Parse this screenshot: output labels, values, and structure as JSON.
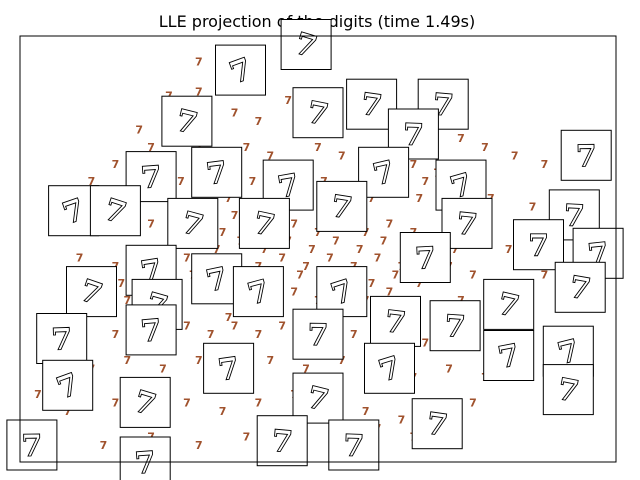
{
  "chart_data": {
    "type": "scatter",
    "title": "LLE projection of the digits (time 1.49s)",
    "xlabel": "",
    "ylabel": "",
    "xlim": [
      0,
      1
    ],
    "ylim": [
      0,
      1
    ],
    "grid": false,
    "ticks_visible": false,
    "marker_text": "7",
    "marker_color": "#a0522d",
    "thumbnail_glyph": "7",
    "points": [
      [
        0.3,
        0.94
      ],
      [
        0.34,
        0.92
      ],
      [
        0.35,
        0.89
      ],
      [
        0.3,
        0.87
      ],
      [
        0.25,
        0.86
      ],
      [
        0.28,
        0.84
      ],
      [
        0.31,
        0.83
      ],
      [
        0.36,
        0.82
      ],
      [
        0.4,
        0.8
      ],
      [
        0.45,
        0.85
      ],
      [
        0.48,
        0.82
      ],
      [
        0.53,
        0.86
      ],
      [
        0.57,
        0.84
      ],
      [
        0.61,
        0.85
      ],
      [
        0.62,
        0.81
      ],
      [
        0.66,
        0.8
      ],
      [
        0.7,
        0.78
      ],
      [
        0.74,
        0.76
      ],
      [
        0.78,
        0.74
      ],
      [
        0.83,
        0.72
      ],
      [
        0.2,
        0.78
      ],
      [
        0.22,
        0.74
      ],
      [
        0.26,
        0.76
      ],
      [
        0.3,
        0.74
      ],
      [
        0.34,
        0.72
      ],
      [
        0.38,
        0.74
      ],
      [
        0.42,
        0.72
      ],
      [
        0.46,
        0.7
      ],
      [
        0.5,
        0.74
      ],
      [
        0.54,
        0.72
      ],
      [
        0.58,
        0.7
      ],
      [
        0.62,
        0.72
      ],
      [
        0.66,
        0.7
      ],
      [
        0.7,
        0.68
      ],
      [
        0.74,
        0.66
      ],
      [
        0.16,
        0.7
      ],
      [
        0.12,
        0.66
      ],
      [
        0.15,
        0.62
      ],
      [
        0.19,
        0.64
      ],
      [
        0.23,
        0.62
      ],
      [
        0.27,
        0.66
      ],
      [
        0.31,
        0.64
      ],
      [
        0.35,
        0.62
      ],
      [
        0.39,
        0.66
      ],
      [
        0.43,
        0.64
      ],
      [
        0.47,
        0.62
      ],
      [
        0.51,
        0.66
      ],
      [
        0.55,
        0.64
      ],
      [
        0.59,
        0.62
      ],
      [
        0.63,
        0.64
      ],
      [
        0.67,
        0.62
      ],
      [
        0.71,
        0.6
      ],
      [
        0.75,
        0.58
      ],
      [
        0.79,
        0.62
      ],
      [
        0.14,
        0.56
      ],
      [
        0.18,
        0.54
      ],
      [
        0.22,
        0.56
      ],
      [
        0.26,
        0.54
      ],
      [
        0.3,
        0.56
      ],
      [
        0.34,
        0.54
      ],
      [
        0.38,
        0.56
      ],
      [
        0.42,
        0.54
      ],
      [
        0.46,
        0.56
      ],
      [
        0.5,
        0.54
      ],
      [
        0.54,
        0.56
      ],
      [
        0.58,
        0.54
      ],
      [
        0.62,
        0.56
      ],
      [
        0.66,
        0.54
      ],
      [
        0.7,
        0.52
      ],
      [
        0.74,
        0.54
      ],
      [
        0.78,
        0.52
      ],
      [
        0.82,
        0.5
      ],
      [
        0.1,
        0.48
      ],
      [
        0.16,
        0.46
      ],
      [
        0.2,
        0.48
      ],
      [
        0.24,
        0.46
      ],
      [
        0.28,
        0.48
      ],
      [
        0.32,
        0.46
      ],
      [
        0.36,
        0.48
      ],
      [
        0.4,
        0.46
      ],
      [
        0.44,
        0.48
      ],
      [
        0.48,
        0.46
      ],
      [
        0.52,
        0.48
      ],
      [
        0.56,
        0.46
      ],
      [
        0.6,
        0.48
      ],
      [
        0.64,
        0.46
      ],
      [
        0.68,
        0.44
      ],
      [
        0.72,
        0.46
      ],
      [
        0.76,
        0.44
      ],
      [
        0.8,
        0.42
      ],
      [
        0.12,
        0.4
      ],
      [
        0.18,
        0.38
      ],
      [
        0.22,
        0.4
      ],
      [
        0.26,
        0.38
      ],
      [
        0.3,
        0.4
      ],
      [
        0.34,
        0.38
      ],
      [
        0.38,
        0.4
      ],
      [
        0.42,
        0.38
      ],
      [
        0.46,
        0.4
      ],
      [
        0.5,
        0.38
      ],
      [
        0.54,
        0.4
      ],
      [
        0.58,
        0.38
      ],
      [
        0.62,
        0.4
      ],
      [
        0.66,
        0.38
      ],
      [
        0.7,
        0.36
      ],
      [
        0.74,
        0.38
      ],
      [
        0.1,
        0.32
      ],
      [
        0.16,
        0.3
      ],
      [
        0.2,
        0.32
      ],
      [
        0.24,
        0.3
      ],
      [
        0.28,
        0.32
      ],
      [
        0.32,
        0.3
      ],
      [
        0.36,
        0.32
      ],
      [
        0.4,
        0.3
      ],
      [
        0.44,
        0.32
      ],
      [
        0.48,
        0.3
      ],
      [
        0.52,
        0.32
      ],
      [
        0.56,
        0.3
      ],
      [
        0.6,
        0.32
      ],
      [
        0.64,
        0.3
      ],
      [
        0.68,
        0.28
      ],
      [
        0.72,
        0.3
      ],
      [
        0.76,
        0.28
      ],
      [
        0.05,
        0.24
      ],
      [
        0.12,
        0.22
      ],
      [
        0.18,
        0.24
      ],
      [
        0.24,
        0.22
      ],
      [
        0.3,
        0.24
      ],
      [
        0.36,
        0.22
      ],
      [
        0.42,
        0.24
      ],
      [
        0.48,
        0.22
      ],
      [
        0.54,
        0.24
      ],
      [
        0.6,
        0.22
      ],
      [
        0.66,
        0.2
      ],
      [
        0.72,
        0.22
      ],
      [
        0.78,
        0.2
      ],
      [
        0.03,
        0.16
      ],
      [
        0.08,
        0.12
      ],
      [
        0.16,
        0.14
      ],
      [
        0.22,
        0.16
      ],
      [
        0.28,
        0.14
      ],
      [
        0.34,
        0.12
      ],
      [
        0.4,
        0.14
      ],
      [
        0.46,
        0.16
      ],
      [
        0.52,
        0.14
      ],
      [
        0.58,
        0.12
      ],
      [
        0.64,
        0.1
      ],
      [
        0.7,
        0.12
      ],
      [
        0.76,
        0.14
      ],
      [
        0.05,
        0.06
      ],
      [
        0.14,
        0.04
      ],
      [
        0.22,
        0.06
      ],
      [
        0.3,
        0.04
      ],
      [
        0.38,
        0.06
      ],
      [
        0.46,
        0.04
      ],
      [
        0.54,
        0.06
      ],
      [
        0.6,
        0.08
      ],
      [
        0.66,
        0.06
      ],
      [
        0.72,
        0.04
      ],
      [
        0.88,
        0.7
      ],
      [
        0.86,
        0.6
      ],
      [
        0.9,
        0.52
      ],
      [
        0.88,
        0.44
      ],
      [
        0.92,
        0.36
      ],
      [
        0.24,
        0.7
      ],
      [
        0.28,
        0.6
      ],
      [
        0.36,
        0.58
      ],
      [
        0.44,
        0.58
      ],
      [
        0.52,
        0.6
      ],
      [
        0.56,
        0.58
      ],
      [
        0.64,
        0.68
      ],
      [
        0.68,
        0.66
      ],
      [
        0.72,
        0.64
      ],
      [
        0.6,
        0.66
      ],
      [
        0.33,
        0.5
      ],
      [
        0.37,
        0.52
      ],
      [
        0.41,
        0.5
      ],
      [
        0.45,
        0.52
      ],
      [
        0.49,
        0.5
      ],
      [
        0.53,
        0.52
      ],
      [
        0.57,
        0.5
      ],
      [
        0.61,
        0.52
      ],
      [
        0.65,
        0.5
      ],
      [
        0.69,
        0.48
      ],
      [
        0.73,
        0.5
      ],
      [
        0.39,
        0.44
      ],
      [
        0.43,
        0.42
      ],
      [
        0.47,
        0.44
      ],
      [
        0.51,
        0.42
      ],
      [
        0.55,
        0.44
      ],
      [
        0.59,
        0.42
      ],
      [
        0.63,
        0.44
      ],
      [
        0.67,
        0.42
      ],
      [
        0.25,
        0.42
      ],
      [
        0.29,
        0.44
      ],
      [
        0.21,
        0.44
      ],
      [
        0.17,
        0.42
      ],
      [
        0.13,
        0.44
      ],
      [
        0.35,
        0.34
      ],
      [
        0.39,
        0.36
      ]
    ],
    "thumbnails": [
      [
        0.37,
        0.92
      ],
      [
        0.48,
        0.98
      ],
      [
        0.28,
        0.8
      ],
      [
        0.5,
        0.82
      ],
      [
        0.59,
        0.84
      ],
      [
        0.71,
        0.84
      ],
      [
        0.66,
        0.77
      ],
      [
        0.95,
        0.72
      ],
      [
        0.22,
        0.67
      ],
      [
        0.33,
        0.68
      ],
      [
        0.45,
        0.65
      ],
      [
        0.61,
        0.68
      ],
      [
        0.74,
        0.65
      ],
      [
        0.09,
        0.59
      ],
      [
        0.16,
        0.59
      ],
      [
        0.29,
        0.56
      ],
      [
        0.41,
        0.56
      ],
      [
        0.54,
        0.6
      ],
      [
        0.75,
        0.56
      ],
      [
        0.93,
        0.58
      ],
      [
        0.87,
        0.51
      ],
      [
        0.68,
        0.48
      ],
      [
        0.97,
        0.49
      ],
      [
        0.22,
        0.45
      ],
      [
        0.33,
        0.43
      ],
      [
        0.4,
        0.4
      ],
      [
        0.54,
        0.4
      ],
      [
        0.12,
        0.4
      ],
      [
        0.23,
        0.37
      ],
      [
        0.82,
        0.37
      ],
      [
        0.94,
        0.41
      ],
      [
        0.63,
        0.33
      ],
      [
        0.73,
        0.32
      ],
      [
        0.5,
        0.3
      ],
      [
        0.07,
        0.29
      ],
      [
        0.22,
        0.31
      ],
      [
        0.35,
        0.22
      ],
      [
        0.82,
        0.25
      ],
      [
        0.92,
        0.26
      ],
      [
        0.62,
        0.22
      ],
      [
        0.08,
        0.18
      ],
      [
        0.21,
        0.14
      ],
      [
        0.5,
        0.15
      ],
      [
        0.92,
        0.17
      ],
      [
        0.7,
        0.09
      ],
      [
        0.44,
        0.05
      ],
      [
        0.56,
        0.04
      ],
      [
        0.02,
        0.04
      ],
      [
        0.21,
        0.0
      ]
    ]
  }
}
